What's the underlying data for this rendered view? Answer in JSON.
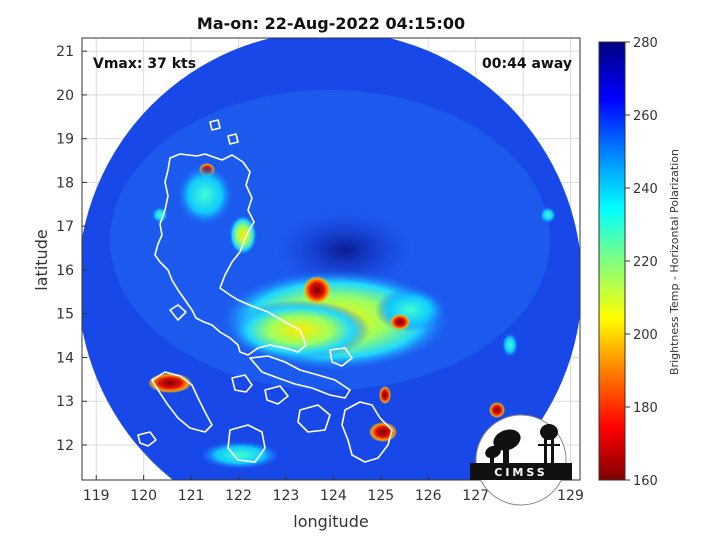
{
  "title": "Ma-on: 22-Aug-2022 04:15:00",
  "vmax_label": "Vmax: 37 kts",
  "time_away_label": "00:44 away",
  "xlabel": "longitude",
  "ylabel": "latitude",
  "colorbar_label": "Brightness Temp - Horizontal Polarization",
  "logo_text": "CIMSS",
  "map_data": {
    "lon_range": [
      118.7,
      129.2
    ],
    "lat_range": [
      11.2,
      21.3
    ],
    "lon_ticks": [
      "119",
      "120",
      "121",
      "122",
      "123",
      "124",
      "125",
      "126",
      "127",
      "128",
      "129"
    ],
    "lat_ticks": [
      "12",
      "13",
      "14",
      "15",
      "16",
      "17",
      "18",
      "19",
      "20",
      "21"
    ],
    "colorbar_range": [
      160,
      280
    ],
    "colorbar_ticks": [
      "160",
      "180",
      "200",
      "220",
      "240",
      "260",
      "280"
    ],
    "colormap": [
      "#800000",
      "#ff0000",
      "#ff8000",
      "#ffff00",
      "#80ff80",
      "#00ffff",
      "#0080ff",
      "#0000ff",
      "#000080"
    ],
    "storm_center": {
      "lon": 123.6,
      "lat": 15.7
    }
  }
}
